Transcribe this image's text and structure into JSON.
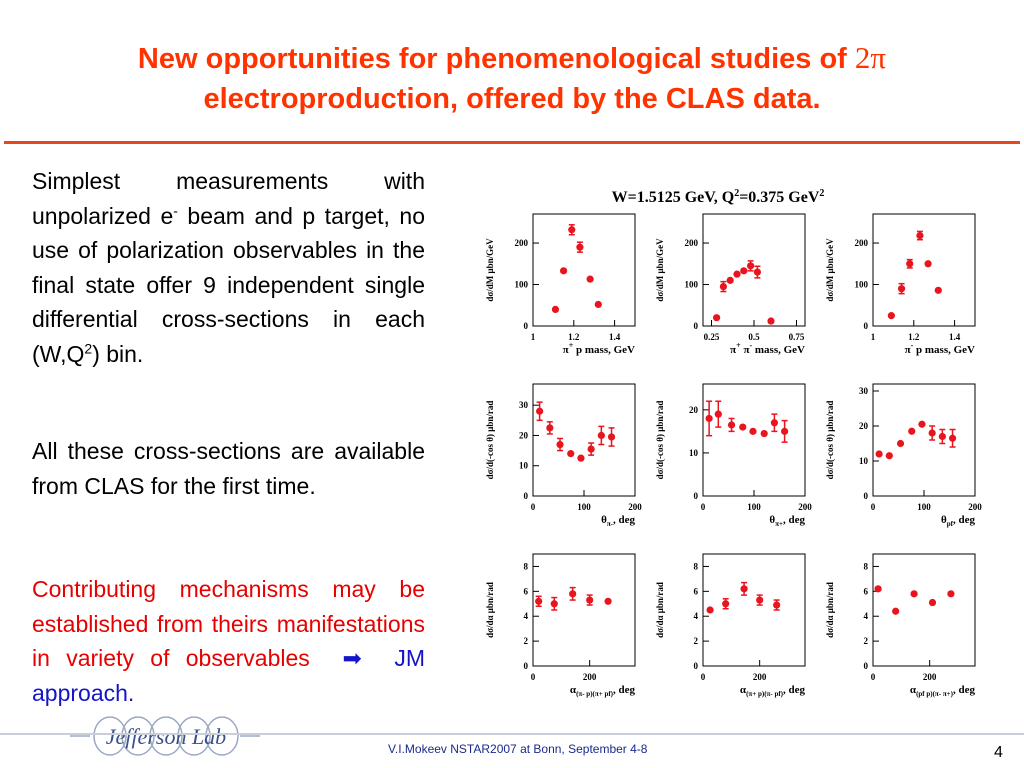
{
  "slide": {
    "title_line1": "New opportunities for phenomenological studies of ",
    "title_pi": "2π",
    "title_line2": "electroproduction, offered by the CLAS data.",
    "p1_a": "Simplest measurements with unpolarized e",
    "p1_sup": "-",
    "p1_b": " beam and p target, no use of polarization observables in  the final state offer 9 independent single differential cross-sections in each (W,Q",
    "p1_sup2": "2",
    "p1_c": ") bin.",
    "p2": "All these cross-sections are available from CLAS for the first time.",
    "p3_a": "Contributing mechanisms may be established from theirs manifestations in variety of observables",
    "p3_arrow": "➡",
    "p3_b": "JM approach.",
    "footer": "V.I.Mokeev   NSTAR2007 at Bonn, September  4-8",
    "page_number": "4",
    "logo_text": "Jefferson Lab"
  },
  "colors": {
    "title": "#ff3300",
    "rule": "#e8461e",
    "text": "#000000",
    "red_text": "#e60000",
    "blue_text": "#1414c8",
    "marker": "#e8141e"
  },
  "chart_data": {
    "type": "scatter",
    "title_main": "W=1.5125 GeV, Q",
    "title_sup1": "2",
    "title_mid": "=0.375 GeV",
    "title_sup2": "2",
    "panels": [
      {
        "ylabel": "dσ/dM μbn/GeV",
        "xlabel_parts": [
          [
            "π",
            ""
          ],
          [
            "+",
            "sup"
          ],
          [
            " p mass, GeV",
            ""
          ]
        ],
        "xlim": [
          1.0,
          1.5
        ],
        "ylim": [
          0,
          270
        ],
        "xticks": [
          {
            "v": 1.0,
            "l": "1"
          },
          {
            "v": 1.2,
            "l": "1.2"
          },
          {
            "v": 1.4,
            "l": "1.4"
          }
        ],
        "yticks": [
          {
            "v": 0,
            "l": "0"
          },
          {
            "v": 100,
            "l": "100"
          },
          {
            "v": 200,
            "l": "200"
          }
        ],
        "points": [
          [
            1.11,
            40,
            0
          ],
          [
            1.15,
            133,
            0
          ],
          [
            1.19,
            232,
            12
          ],
          [
            1.23,
            190,
            12
          ],
          [
            1.28,
            113,
            0
          ],
          [
            1.32,
            52,
            0
          ]
        ]
      },
      {
        "ylabel": "dσ/dM μbn/GeV",
        "xlabel_parts": [
          [
            "π",
            ""
          ],
          [
            "+",
            "sup"
          ],
          [
            " π",
            ""
          ],
          [
            "-",
            "sup"
          ],
          [
            " mass, GeV",
            ""
          ]
        ],
        "xlim": [
          0.2,
          0.8
        ],
        "ylim": [
          0,
          270
        ],
        "xticks": [
          {
            "v": 0.25,
            "l": "0.25"
          },
          {
            "v": 0.5,
            "l": "0.5"
          },
          {
            "v": 0.75,
            "l": "0.75"
          }
        ],
        "yticks": [
          {
            "v": 0,
            "l": "0"
          },
          {
            "v": 100,
            "l": "100"
          },
          {
            "v": 200,
            "l": "200"
          }
        ],
        "points": [
          [
            0.28,
            20,
            0
          ],
          [
            0.32,
            95,
            12
          ],
          [
            0.36,
            110,
            0
          ],
          [
            0.4,
            125,
            0
          ],
          [
            0.44,
            133,
            0
          ],
          [
            0.48,
            145,
            12
          ],
          [
            0.52,
            130,
            14
          ],
          [
            0.6,
            12,
            0
          ]
        ]
      },
      {
        "ylabel": "dσ/dM μbn/GeV",
        "xlabel_parts": [
          [
            "π",
            ""
          ],
          [
            "-",
            "sup"
          ],
          [
            " p mass, GeV",
            ""
          ]
        ],
        "xlim": [
          1.0,
          1.5
        ],
        "ylim": [
          0,
          270
        ],
        "xticks": [
          {
            "v": 1.0,
            "l": "1"
          },
          {
            "v": 1.2,
            "l": "1.2"
          },
          {
            "v": 1.4,
            "l": "1.4"
          }
        ],
        "yticks": [
          {
            "v": 0,
            "l": "0"
          },
          {
            "v": 100,
            "l": "100"
          },
          {
            "v": 200,
            "l": "200"
          }
        ],
        "points": [
          [
            1.09,
            25,
            0
          ],
          [
            1.14,
            90,
            12
          ],
          [
            1.18,
            150,
            10
          ],
          [
            1.23,
            218,
            10
          ],
          [
            1.27,
            150,
            0
          ],
          [
            1.32,
            86,
            0
          ]
        ]
      },
      {
        "ylabel": "dσ/d(-cos θ) μbn/rad",
        "xlabel_parts": [
          [
            "θ",
            ""
          ],
          [
            "π-",
            "sub"
          ],
          [
            ", deg",
            ""
          ]
        ],
        "xlim": [
          0,
          200
        ],
        "ylim": [
          0,
          37
        ],
        "xticks": [
          {
            "v": 0,
            "l": "0"
          },
          {
            "v": 100,
            "l": "100"
          },
          {
            "v": 200,
            "l": "200"
          }
        ],
        "yticks": [
          {
            "v": 0,
            "l": "0"
          },
          {
            "v": 10,
            "l": "10"
          },
          {
            "v": 20,
            "l": "20"
          },
          {
            "v": 30,
            "l": "30"
          }
        ],
        "points": [
          [
            13,
            28,
            3
          ],
          [
            33,
            22.5,
            2
          ],
          [
            53,
            17,
            2
          ],
          [
            74,
            14,
            0
          ],
          [
            94,
            12.5,
            0
          ],
          [
            114,
            15.5,
            2
          ],
          [
            134,
            20,
            3
          ],
          [
            154,
            19.5,
            3
          ]
        ]
      },
      {
        "ylabel": "dσ/d(-cos θ) μbn/rad",
        "xlabel_parts": [
          [
            "θ",
            ""
          ],
          [
            "π+",
            "sub"
          ],
          [
            ", deg",
            ""
          ]
        ],
        "xlim": [
          0,
          200
        ],
        "ylim": [
          0,
          26
        ],
        "xticks": [
          {
            "v": 0,
            "l": "0"
          },
          {
            "v": 100,
            "l": "100"
          },
          {
            "v": 200,
            "l": "200"
          }
        ],
        "yticks": [
          {
            "v": 0,
            "l": "0"
          },
          {
            "v": 10,
            "l": "10"
          },
          {
            "v": 20,
            "l": "20"
          }
        ],
        "points": [
          [
            12,
            18,
            4
          ],
          [
            30,
            19,
            3
          ],
          [
            56,
            16.5,
            1.5
          ],
          [
            78,
            16,
            0
          ],
          [
            98,
            15,
            0
          ],
          [
            120,
            14.5,
            0
          ],
          [
            140,
            17,
            2
          ],
          [
            160,
            15,
            2.5
          ]
        ]
      },
      {
        "ylabel": "dσ/d(-cos θ) μbn/rad",
        "xlabel_parts": [
          [
            "θ",
            ""
          ],
          [
            "pf",
            "sub"
          ],
          ", deg"
        ],
        "xlim": [
          0,
          200
        ],
        "ylim": [
          0,
          32
        ],
        "xticks": [
          {
            "v": 0,
            "l": "0"
          },
          {
            "v": 100,
            "l": "100"
          },
          {
            "v": 200,
            "l": "200"
          }
        ],
        "yticks": [
          {
            "v": 0,
            "l": "0"
          },
          {
            "v": 10,
            "l": "10"
          },
          {
            "v": 20,
            "l": "20"
          },
          {
            "v": 30,
            "l": "30"
          }
        ],
        "points": [
          [
            12,
            12,
            0
          ],
          [
            32,
            11.5,
            0
          ],
          [
            54,
            15,
            0
          ],
          [
            76,
            18.5,
            0
          ],
          [
            96,
            20.5,
            0
          ],
          [
            116,
            18,
            2
          ],
          [
            136,
            17,
            2
          ],
          [
            156,
            16.5,
            2.5
          ]
        ]
      },
      {
        "ylabel": "dσ/dα μbn/rad",
        "xlabel_parts": [
          [
            "α",
            ""
          ],
          [
            "(π- p)(π+ pf)",
            "sub"
          ],
          [
            ", deg",
            ""
          ]
        ],
        "xlim": [
          0,
          360
        ],
        "ylim": [
          0,
          9
        ],
        "xticks": [
          {
            "v": 0,
            "l": "0"
          },
          {
            "v": 200,
            "l": "200"
          }
        ],
        "yticks": [
          {
            "v": 0,
            "l": "0"
          },
          {
            "v": 2,
            "l": "2"
          },
          {
            "v": 4,
            "l": "4"
          },
          {
            "v": 6,
            "l": "6"
          },
          {
            "v": 8,
            "l": "8"
          }
        ],
        "points": [
          [
            20,
            5.2,
            0.4
          ],
          [
            75,
            5,
            0.5
          ],
          [
            140,
            5.8,
            0.5
          ],
          [
            200,
            5.3,
            0.4
          ],
          [
            265,
            5.2,
            0
          ]
        ]
      },
      {
        "ylabel": "dσ/dα μbn/rad",
        "xlabel_parts": [
          [
            "α",
            ""
          ],
          [
            "(π+ p)(π- pf)",
            "sub"
          ],
          [
            ", deg",
            ""
          ]
        ],
        "xlim": [
          0,
          360
        ],
        "ylim": [
          0,
          9
        ],
        "xticks": [
          {
            "v": 0,
            "l": "0"
          },
          {
            "v": 200,
            "l": "200"
          }
        ],
        "yticks": [
          {
            "v": 0,
            "l": "0"
          },
          {
            "v": 2,
            "l": "2"
          },
          {
            "v": 4,
            "l": "4"
          },
          {
            "v": 6,
            "l": "6"
          },
          {
            "v": 8,
            "l": "8"
          }
        ],
        "points": [
          [
            25,
            4.5,
            0
          ],
          [
            80,
            5,
            0.4
          ],
          [
            145,
            6.2,
            0.5
          ],
          [
            200,
            5.3,
            0.4
          ],
          [
            260,
            4.9,
            0.4
          ]
        ]
      },
      {
        "ylabel": "dσ/dα μbn/rad",
        "xlabel_parts": [
          [
            "α",
            ""
          ],
          [
            "(pf p)(π- π+)",
            "sub"
          ],
          [
            ", deg",
            ""
          ]
        ],
        "xlim": [
          0,
          360
        ],
        "ylim": [
          0,
          9
        ],
        "xticks": [
          {
            "v": 0,
            "l": "0"
          },
          {
            "v": 200,
            "l": "200"
          }
        ],
        "yticks": [
          {
            "v": 0,
            "l": "0"
          },
          {
            "v": 2,
            "l": "2"
          },
          {
            "v": 4,
            "l": "4"
          },
          {
            "v": 6,
            "l": "6"
          },
          {
            "v": 8,
            "l": "8"
          }
        ],
        "points": [
          [
            18,
            6.2,
            0
          ],
          [
            80,
            4.4,
            0
          ],
          [
            145,
            5.8,
            0
          ],
          [
            210,
            5.1,
            0
          ],
          [
            275,
            5.8,
            0
          ]
        ]
      }
    ]
  }
}
